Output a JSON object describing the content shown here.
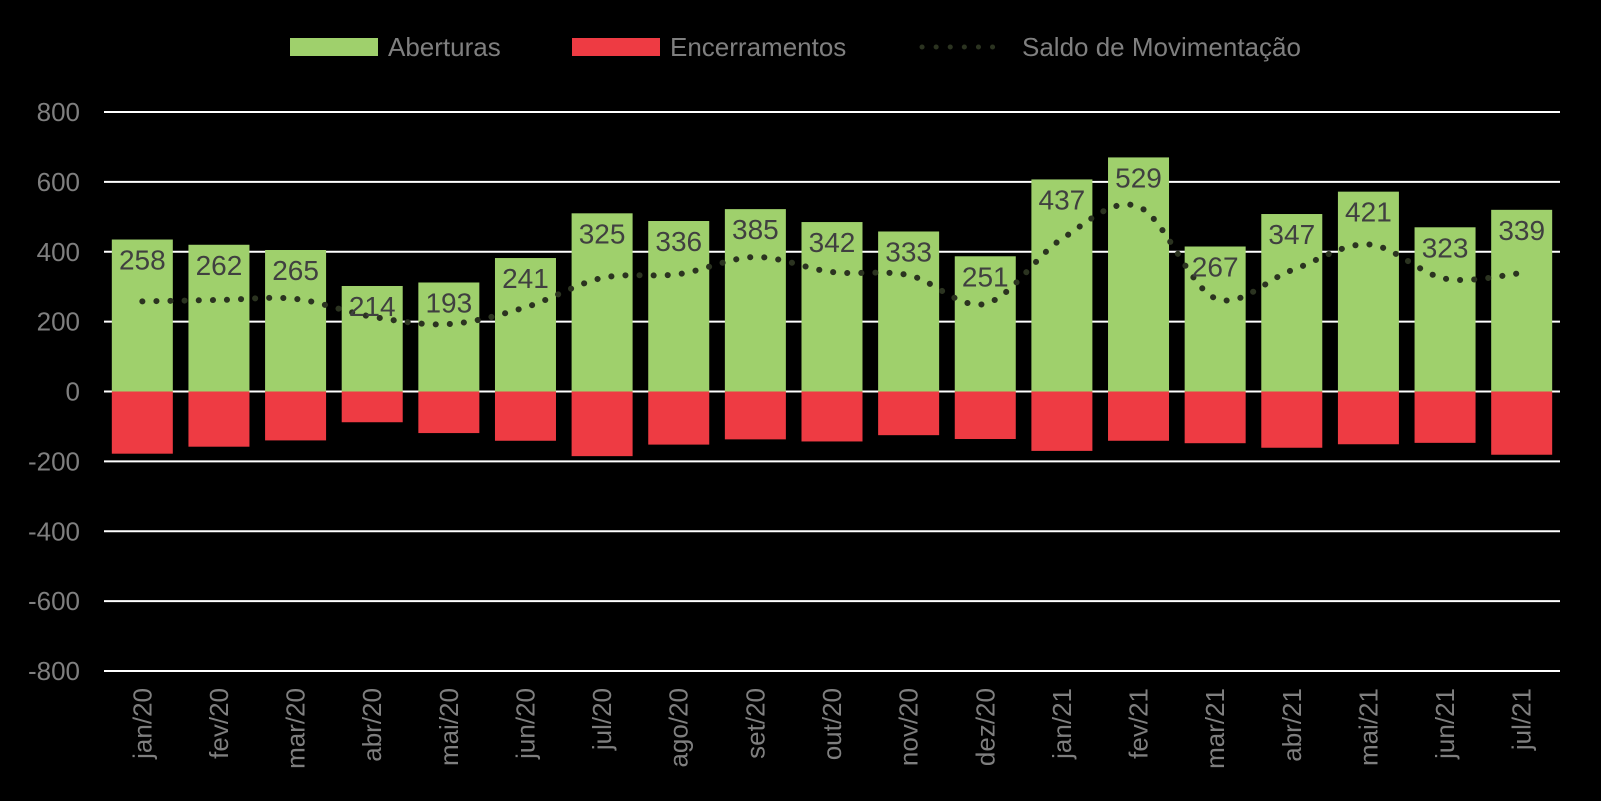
{
  "chart_data": {
    "type": "bar",
    "title": "",
    "xlabel": "",
    "ylabel": "",
    "ylim": [
      -800,
      800
    ],
    "yticks": [
      800,
      600,
      400,
      200,
      0,
      -200,
      -400,
      -600,
      -800
    ],
    "grid": true,
    "legend_position": "top",
    "categories": [
      "jan/20",
      "fev/20",
      "mar/20",
      "abr/20",
      "mai/20",
      "jun/20",
      "jul/20",
      "ago/20",
      "set/20",
      "out/20",
      "nov/20",
      "dez/20",
      "jan/21",
      "fev/21",
      "mar/21",
      "abr/21",
      "mai/21",
      "jun/21",
      "jul/21"
    ],
    "series": [
      {
        "name": "Aberturas",
        "kind": "bar",
        "color": "#9fd06c",
        "values": [
          435,
          420,
          405,
          302,
          312,
          382,
          510,
          488,
          522,
          485,
          458,
          387,
          607,
          670,
          415,
          508,
          572,
          470,
          520
        ]
      },
      {
        "name": "Encerramentos",
        "kind": "bar",
        "color": "#ee3b43",
        "values": [
          -178,
          -158,
          -140,
          -88,
          -119,
          -141,
          -185,
          -152,
          -137,
          -143,
          -125,
          -136,
          -170,
          -141,
          -148,
          -161,
          -151,
          -147,
          -181
        ]
      },
      {
        "name": "Saldo de Movimentação",
        "kind": "line",
        "style": "dotted",
        "color": "#2b3320",
        "values": [
          258,
          262,
          265,
          214,
          193,
          241,
          325,
          336,
          385,
          342,
          333,
          251,
          437,
          529,
          267,
          347,
          421,
          323,
          339
        ]
      }
    ],
    "data_labels": [
      "258",
      "262",
      "265",
      "214",
      "193",
      "241",
      "325",
      "336",
      "385",
      "342",
      "333",
      "251",
      "437",
      "529",
      "267",
      "347",
      "421",
      "323",
      "339"
    ]
  }
}
